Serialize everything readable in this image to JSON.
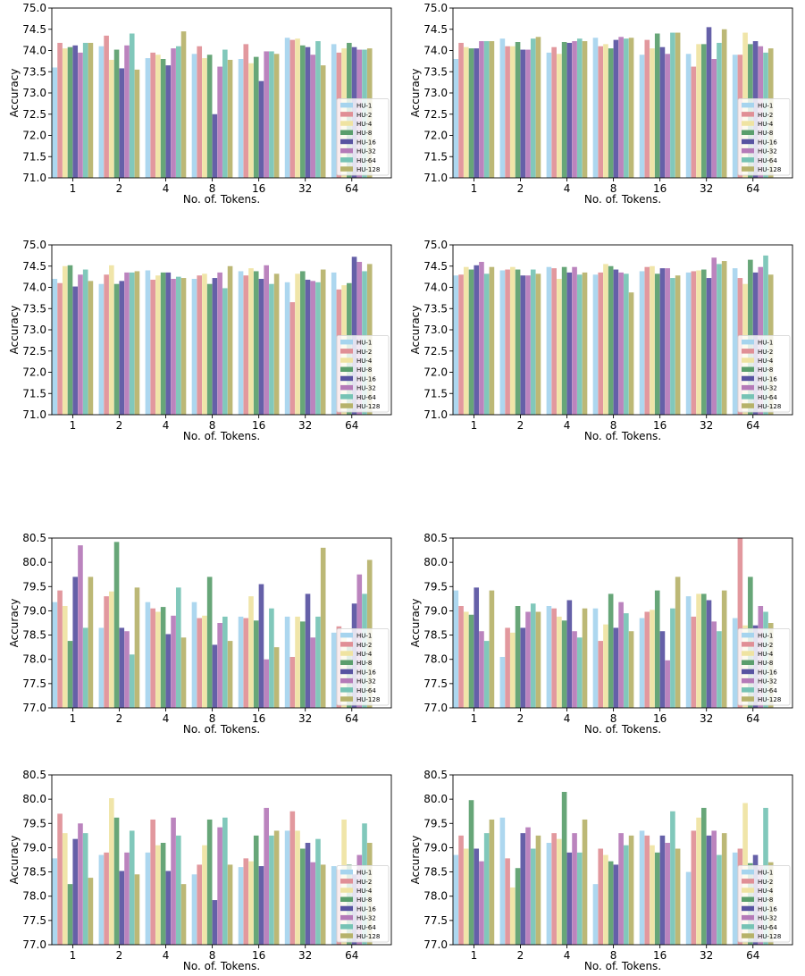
{
  "legend_labels": [
    "HU-1",
    "HU-2",
    "HU-4",
    "HU-8",
    "HU-16",
    "HU-32",
    "HU-64",
    "HU-128"
  ],
  "series_colors": [
    "#a6d4ee",
    "#e08f96",
    "#efe3a2",
    "#5a9e6d",
    "#5853a1",
    "#b57ab8",
    "#76c3b5",
    "#b6b26a"
  ],
  "chart_data": [
    {
      "type": "bar",
      "categories": [
        "1",
        "2",
        "4",
        "8",
        "16",
        "32",
        "64"
      ],
      "xlabel": "No. of. Tokens.",
      "ylabel": "Accuracy",
      "ylim": [
        71.0,
        75.0
      ],
      "yticks": [
        "71.0",
        "71.5",
        "72.0",
        "72.5",
        "73.0",
        "73.5",
        "74.0",
        "74.5",
        "75.0"
      ],
      "legend_position": "lower-right",
      "series": [
        {
          "name": "HU-1",
          "values": [
            73.6,
            74.1,
            73.82,
            73.92,
            73.8,
            74.3,
            74.15
          ]
        },
        {
          "name": "HU-2",
          "values": [
            74.18,
            74.35,
            73.95,
            74.1,
            74.15,
            74.25,
            73.95
          ]
        },
        {
          "name": "HU-4",
          "values": [
            74.05,
            73.78,
            73.9,
            73.82,
            73.7,
            74.28,
            74.05
          ]
        },
        {
          "name": "HU-8",
          "values": [
            74.08,
            74.02,
            73.8,
            73.9,
            73.85,
            74.12,
            74.18
          ]
        },
        {
          "name": "HU-16",
          "values": [
            74.12,
            73.58,
            73.65,
            72.5,
            73.28,
            74.08,
            74.08
          ]
        },
        {
          "name": "HU-32",
          "values": [
            73.95,
            74.12,
            74.05,
            73.62,
            73.98,
            73.9,
            74.02
          ]
        },
        {
          "name": "HU-64",
          "values": [
            74.18,
            74.4,
            74.1,
            74.02,
            73.98,
            74.22,
            74.02
          ]
        },
        {
          "name": "HU-128",
          "values": [
            74.18,
            73.55,
            74.45,
            73.78,
            73.92,
            73.65,
            74.05
          ]
        }
      ]
    },
    {
      "type": "bar",
      "categories": [
        "1",
        "2",
        "4",
        "8",
        "16",
        "32",
        "64"
      ],
      "xlabel": "No. of. Tokens.",
      "ylabel": "Accuracy",
      "ylim": [
        71.0,
        75.0
      ],
      "yticks": [
        "71.0",
        "71.5",
        "72.0",
        "72.5",
        "73.0",
        "73.5",
        "74.0",
        "74.5",
        "75.0"
      ],
      "legend_position": "lower-right",
      "series": [
        {
          "name": "HU-1",
          "values": [
            73.8,
            74.28,
            73.95,
            74.3,
            73.9,
            73.92,
            73.9
          ]
        },
        {
          "name": "HU-2",
          "values": [
            74.18,
            74.1,
            74.08,
            74.1,
            74.25,
            73.62,
            73.9
          ]
        },
        {
          "name": "HU-4",
          "values": [
            74.08,
            74.1,
            73.92,
            74.15,
            74.05,
            74.15,
            74.42
          ]
        },
        {
          "name": "HU-8",
          "values": [
            74.05,
            74.2,
            74.2,
            74.05,
            74.4,
            74.15,
            74.15
          ]
        },
        {
          "name": "HU-16",
          "values": [
            74.05,
            74.02,
            74.18,
            74.25,
            74.08,
            74.55,
            74.22
          ]
        },
        {
          "name": "HU-32",
          "values": [
            74.22,
            74.02,
            74.22,
            74.32,
            73.92,
            73.8,
            74.1
          ]
        },
        {
          "name": "HU-64",
          "values": [
            74.22,
            74.28,
            74.28,
            74.28,
            74.42,
            74.18,
            73.95
          ]
        },
        {
          "name": "HU-128",
          "values": [
            74.22,
            74.32,
            74.22,
            74.3,
            74.42,
            74.5,
            74.05
          ]
        }
      ]
    },
    {
      "type": "bar",
      "categories": [
        "1",
        "2",
        "4",
        "8",
        "16",
        "32",
        "64"
      ],
      "xlabel": "No. of. Tokens.",
      "ylabel": "Accuracy",
      "ylim": [
        71.0,
        75.0
      ],
      "yticks": [
        "71.0",
        "71.5",
        "72.0",
        "72.5",
        "73.0",
        "73.5",
        "74.0",
        "74.5",
        "75.0"
      ],
      "legend_position": "lower-right",
      "series": [
        {
          "name": "HU-1",
          "values": [
            74.2,
            74.08,
            74.4,
            74.2,
            74.38,
            74.12,
            74.35
          ]
        },
        {
          "name": "HU-2",
          "values": [
            74.1,
            74.3,
            74.18,
            74.28,
            74.28,
            73.65,
            73.95
          ]
        },
        {
          "name": "HU-4",
          "values": [
            74.5,
            74.52,
            74.28,
            74.32,
            74.45,
            74.32,
            74.05
          ]
        },
        {
          "name": "HU-8",
          "values": [
            74.52,
            74.08,
            74.35,
            74.08,
            74.38,
            74.38,
            74.1
          ]
        },
        {
          "name": "HU-16",
          "values": [
            74.02,
            74.15,
            74.35,
            74.22,
            74.2,
            74.18,
            74.72
          ]
        },
        {
          "name": "HU-32",
          "values": [
            74.3,
            74.35,
            74.2,
            74.35,
            74.52,
            74.15,
            74.6
          ]
        },
        {
          "name": "HU-64",
          "values": [
            74.42,
            74.35,
            74.25,
            73.98,
            74.08,
            74.12,
            74.38
          ]
        },
        {
          "name": "HU-128",
          "values": [
            74.15,
            74.38,
            74.22,
            74.5,
            74.32,
            74.42,
            74.55
          ]
        }
      ]
    },
    {
      "type": "bar",
      "categories": [
        "1",
        "2",
        "4",
        "8",
        "16",
        "32",
        "64"
      ],
      "xlabel": "No. of. Tokens.",
      "ylabel": "Accuracy",
      "ylim": [
        71.0,
        75.0
      ],
      "yticks": [
        "71.0",
        "71.5",
        "72.0",
        "72.5",
        "73.0",
        "73.5",
        "74.0",
        "74.5",
        "75.0"
      ],
      "legend_position": "lower-right",
      "series": [
        {
          "name": "HU-1",
          "values": [
            74.28,
            74.4,
            74.48,
            74.3,
            74.38,
            74.35,
            74.45
          ]
        },
        {
          "name": "HU-2",
          "values": [
            74.3,
            74.42,
            74.45,
            74.35,
            74.48,
            74.38,
            74.22
          ]
        },
        {
          "name": "HU-4",
          "values": [
            74.48,
            74.48,
            74.2,
            74.55,
            74.5,
            74.4,
            74.08
          ]
        },
        {
          "name": "HU-8",
          "values": [
            74.42,
            74.42,
            74.48,
            74.5,
            74.32,
            74.42,
            74.65
          ]
        },
        {
          "name": "HU-16",
          "values": [
            74.52,
            74.28,
            74.35,
            74.42,
            74.45,
            74.22,
            74.35
          ]
        },
        {
          "name": "HU-32",
          "values": [
            74.6,
            74.28,
            74.48,
            74.35,
            74.45,
            74.7,
            74.48
          ]
        },
        {
          "name": "HU-64",
          "values": [
            74.32,
            74.42,
            74.3,
            74.32,
            74.22,
            74.55,
            74.75
          ]
        },
        {
          "name": "HU-128",
          "values": [
            74.48,
            74.32,
            74.35,
            73.88,
            74.28,
            74.62,
            74.3
          ]
        }
      ]
    },
    {
      "type": "bar",
      "categories": [
        "1",
        "2",
        "4",
        "8",
        "16",
        "32",
        "64"
      ],
      "xlabel": "No. of. Tokens.",
      "ylabel": "Accuracy",
      "ylim": [
        77.0,
        80.5
      ],
      "yticks": [
        "77.0",
        "77.5",
        "78.0",
        "78.5",
        "79.0",
        "79.5",
        "80.0",
        "80.5"
      ],
      "legend_position": "lower-right",
      "series": [
        {
          "name": "HU-1",
          "values": [
            79.18,
            78.65,
            79.18,
            79.18,
            78.88,
            78.88,
            78.55
          ]
        },
        {
          "name": "HU-2",
          "values": [
            79.42,
            79.3,
            79.05,
            78.85,
            78.85,
            78.05,
            78.68
          ]
        },
        {
          "name": "HU-4",
          "values": [
            79.1,
            79.4,
            78.98,
            78.9,
            79.3,
            78.88,
            78.55
          ]
        },
        {
          "name": "HU-8",
          "values": [
            78.38,
            80.42,
            79.08,
            79.7,
            78.8,
            78.78,
            78.3
          ]
        },
        {
          "name": "HU-16",
          "values": [
            79.7,
            78.65,
            78.52,
            78.3,
            79.55,
            79.35,
            79.15
          ]
        },
        {
          "name": "HU-32",
          "values": [
            80.35,
            78.58,
            78.9,
            78.75,
            78.0,
            78.45,
            79.75
          ]
        },
        {
          "name": "HU-64",
          "values": [
            78.65,
            78.1,
            79.48,
            78.88,
            79.05,
            78.88,
            79.35
          ]
        },
        {
          "name": "HU-128",
          "values": [
            79.7,
            79.48,
            78.45,
            78.38,
            78.25,
            80.3,
            80.05
          ]
        }
      ]
    },
    {
      "type": "bar",
      "categories": [
        "1",
        "2",
        "4",
        "8",
        "16",
        "32",
        "64"
      ],
      "xlabel": "No. of. Tokens.",
      "ylabel": "Accuracy",
      "ylim": [
        77.0,
        80.5
      ],
      "yticks": [
        "77.0",
        "77.5",
        "78.0",
        "78.5",
        "79.0",
        "79.5",
        "80.0",
        "80.5"
      ],
      "legend_position": "lower-right",
      "series": [
        {
          "name": "HU-1",
          "values": [
            79.42,
            78.05,
            79.1,
            79.05,
            78.85,
            79.3,
            78.85
          ]
        },
        {
          "name": "HU-2",
          "values": [
            79.1,
            78.65,
            79.05,
            78.38,
            78.98,
            78.88,
            80.5
          ]
        },
        {
          "name": "HU-4",
          "values": [
            78.98,
            78.55,
            78.88,
            78.72,
            79.02,
            79.35,
            78.7
          ]
        },
        {
          "name": "HU-8",
          "values": [
            78.92,
            79.1,
            78.8,
            79.35,
            79.42,
            79.35,
            79.7
          ]
        },
        {
          "name": "HU-16",
          "values": [
            79.48,
            78.65,
            79.22,
            78.65,
            78.58,
            79.22,
            78.7
          ]
        },
        {
          "name": "HU-32",
          "values": [
            78.58,
            78.98,
            78.58,
            79.18,
            77.98,
            78.78,
            79.1
          ]
        },
        {
          "name": "HU-64",
          "values": [
            78.38,
            79.15,
            78.45,
            78.95,
            79.05,
            78.58,
            78.98
          ]
        },
        {
          "name": "HU-128",
          "values": [
            79.42,
            78.98,
            79.05,
            78.58,
            79.7,
            79.42,
            78.75
          ]
        }
      ]
    },
    {
      "type": "bar",
      "categories": [
        "1",
        "2",
        "4",
        "8",
        "16",
        "32",
        "64"
      ],
      "xlabel": "No. of. Tokens.",
      "ylabel": "Accuracy",
      "ylim": [
        77.0,
        80.5
      ],
      "yticks": [
        "77.0",
        "77.5",
        "78.0",
        "78.5",
        "79.0",
        "79.5",
        "80.0",
        "80.5"
      ],
      "legend_position": "lower-right",
      "series": [
        {
          "name": "HU-1",
          "values": [
            78.78,
            78.85,
            78.9,
            78.45,
            78.6,
            79.35,
            78.62
          ]
        },
        {
          "name": "HU-2",
          "values": [
            79.7,
            78.9,
            79.58,
            78.65,
            78.78,
            79.75,
            78.55
          ]
        },
        {
          "name": "HU-4",
          "values": [
            79.3,
            80.02,
            79.05,
            79.05,
            78.72,
            79.35,
            79.58
          ]
        },
        {
          "name": "HU-8",
          "values": [
            78.25,
            79.62,
            79.1,
            79.58,
            79.25,
            78.98,
            78.65
          ]
        },
        {
          "name": "HU-16",
          "values": [
            79.18,
            78.52,
            78.52,
            77.92,
            78.62,
            79.1,
            78.45
          ]
        },
        {
          "name": "HU-32",
          "values": [
            79.5,
            78.9,
            79.62,
            79.42,
            79.82,
            78.7,
            78.85
          ]
        },
        {
          "name": "HU-64",
          "values": [
            79.3,
            79.35,
            79.25,
            79.62,
            79.25,
            79.18,
            79.5
          ]
        },
        {
          "name": "HU-128",
          "values": [
            78.38,
            78.45,
            78.25,
            78.65,
            79.35,
            78.65,
            79.1
          ]
        }
      ]
    },
    {
      "type": "bar",
      "categories": [
        "1",
        "2",
        "4",
        "8",
        "16",
        "32",
        "64"
      ],
      "xlabel": "No. of. Tokens.",
      "ylabel": "Accuracy",
      "ylim": [
        77.0,
        80.5
      ],
      "yticks": [
        "77.0",
        "77.5",
        "78.0",
        "78.5",
        "79.0",
        "79.5",
        "80.0",
        "80.5"
      ],
      "legend_position": "lower-right",
      "series": [
        {
          "name": "HU-1",
          "values": [
            78.85,
            79.62,
            79.1,
            78.25,
            79.35,
            78.5,
            78.9
          ]
        },
        {
          "name": "HU-2",
          "values": [
            79.25,
            78.78,
            79.3,
            78.98,
            79.25,
            79.35,
            78.98
          ]
        },
        {
          "name": "HU-4",
          "values": [
            78.98,
            78.18,
            79.18,
            78.85,
            79.05,
            79.62,
            79.92
          ]
        },
        {
          "name": "HU-8",
          "values": [
            79.98,
            78.58,
            80.15,
            78.72,
            78.9,
            79.82,
            78.68
          ]
        },
        {
          "name": "HU-16",
          "values": [
            78.98,
            79.3,
            78.9,
            78.65,
            79.25,
            79.25,
            78.85
          ]
        },
        {
          "name": "HU-32",
          "values": [
            78.72,
            79.42,
            79.3,
            79.3,
            79.1,
            79.35,
            78.62
          ]
        },
        {
          "name": "HU-64",
          "values": [
            79.3,
            78.98,
            78.9,
            79.05,
            79.75,
            78.85,
            79.82
          ]
        },
        {
          "name": "HU-128",
          "values": [
            79.58,
            79.25,
            79.58,
            79.25,
            78.98,
            79.3,
            78.7
          ]
        }
      ]
    }
  ]
}
